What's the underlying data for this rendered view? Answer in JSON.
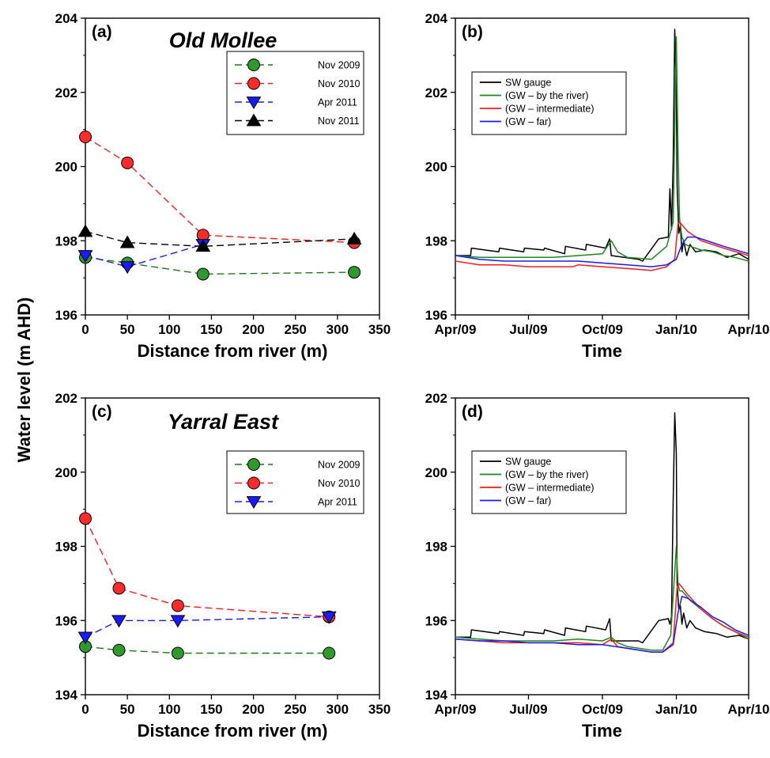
{
  "ylabel": "Water level (m AHD)",
  "chart_data": [
    {
      "panel": "(a)",
      "title": "Old Mollee",
      "type": "line",
      "xlabel": "Distance from river (m)",
      "xlim": [
        0,
        350
      ],
      "ylim": [
        196,
        204
      ],
      "xticks": [
        0,
        50,
        100,
        150,
        200,
        250,
        300,
        350
      ],
      "yticks": [
        196,
        198,
        200,
        202,
        204
      ],
      "legend": "top-right",
      "series": [
        {
          "name": "Nov 2009",
          "color": "#1a7a1a",
          "marker": "circle",
          "marker_color": "#2e9a2e",
          "x": [
            0,
            50,
            140,
            320
          ],
          "y": [
            197.55,
            197.4,
            197.1,
            197.15
          ]
        },
        {
          "name": "Nov 2010",
          "color": "#ff1a1a",
          "marker": "circle",
          "marker_color": "#ff2a2a",
          "x": [
            0,
            50,
            140,
            320
          ],
          "y": [
            200.8,
            200.1,
            198.15,
            197.95
          ]
        },
        {
          "name": "Apr 2011",
          "color": "#1a1aff",
          "marker": "triangle-down",
          "marker_color": "#1a1aff",
          "x": [
            0,
            50,
            140
          ],
          "y": [
            197.6,
            197.3,
            197.9
          ]
        },
        {
          "name": "Nov 2011",
          "color": "#000000",
          "marker": "triangle-up",
          "marker_color": "#000000",
          "x": [
            0,
            50,
            140,
            320
          ],
          "y": [
            198.25,
            197.95,
            197.85,
            198.05
          ]
        }
      ]
    },
    {
      "panel": "(b)",
      "type": "line",
      "xlabel": "Time",
      "x_is_date": true,
      "xlim": [
        "2009-04-01",
        "2010-04-01"
      ],
      "ylim": [
        196,
        204
      ],
      "xticks": [
        "2009-04-01",
        "2009-07-01",
        "2009-10-01",
        "2010-01-01",
        "2010-04-01"
      ],
      "xticklabels": [
        "Apr/09",
        "Jul/09",
        "Oct/09",
        "Jan/10",
        "Apr/10"
      ],
      "yticks": [
        196,
        198,
        200,
        202,
        204
      ],
      "legend": "top-left",
      "series": [
        {
          "name": "SW gauge",
          "color": "#000000",
          "x": [
            "2009-04-01",
            "2009-04-20",
            "2009-04-21",
            "2009-05-25",
            "2009-05-26",
            "2009-06-25",
            "2009-06-26",
            "2009-07-20",
            "2009-07-21",
            "2009-08-15",
            "2009-08-16",
            "2009-09-10",
            "2009-09-11",
            "2009-10-05",
            "2009-10-10",
            "2009-10-12",
            "2009-11-15",
            "2009-11-20",
            "2009-12-10",
            "2009-12-22",
            "2009-12-24",
            "2009-12-26",
            "2009-12-28",
            "2009-12-30",
            "2010-01-01",
            "2010-01-02",
            "2010-01-04",
            "2010-01-06",
            "2010-01-08",
            "2010-01-10",
            "2010-01-14",
            "2010-01-18",
            "2010-01-25",
            "2010-02-05",
            "2010-02-20",
            "2010-03-05",
            "2010-03-20",
            "2010-04-01"
          ],
          "y": [
            197.6,
            197.6,
            197.8,
            197.7,
            197.8,
            197.7,
            197.8,
            197.75,
            197.8,
            197.65,
            197.85,
            197.75,
            197.9,
            197.8,
            198.05,
            197.6,
            197.5,
            197.45,
            198.05,
            198.1,
            199.4,
            198.3,
            200.1,
            203.7,
            202.0,
            199.5,
            198.2,
            198.4,
            197.7,
            198.0,
            197.6,
            197.9,
            197.7,
            197.75,
            197.7,
            197.55,
            197.65,
            197.5
          ]
        },
        {
          "name": "(GW – by the river)",
          "color": "#1a8a1a",
          "x": [
            "2009-04-01",
            "2009-05-01",
            "2009-06-01",
            "2009-07-01",
            "2009-08-01",
            "2009-09-01",
            "2009-10-01",
            "2009-10-12",
            "2009-10-20",
            "2009-11-01",
            "2009-12-01",
            "2009-12-20",
            "2009-12-28",
            "2010-01-01",
            "2010-01-03",
            "2010-01-05",
            "2010-01-08",
            "2010-01-12",
            "2010-01-18",
            "2010-02-01",
            "2010-02-15",
            "2010-03-01",
            "2010-03-15",
            "2010-04-01"
          ],
          "y": [
            197.6,
            197.55,
            197.55,
            197.55,
            197.55,
            197.6,
            197.65,
            198.0,
            197.7,
            197.55,
            197.5,
            197.85,
            198.5,
            203.5,
            200.5,
            198.6,
            198.1,
            197.9,
            197.85,
            197.75,
            197.7,
            197.6,
            197.55,
            197.45
          ]
        },
        {
          "name": "(GW – intermediate)",
          "color": "#ff1a1a",
          "x": [
            "2009-04-01",
            "2009-05-01",
            "2009-06-01",
            "2009-07-01",
            "2009-08-01",
            "2009-08-25",
            "2009-09-01",
            "2009-10-01",
            "2009-11-01",
            "2009-12-01",
            "2009-12-20",
            "2009-12-30",
            "2010-01-03",
            "2010-01-05",
            "2010-01-15",
            "2010-02-01",
            "2010-03-01",
            "2010-04-01"
          ],
          "y": [
            197.45,
            197.35,
            197.35,
            197.3,
            197.3,
            197.3,
            197.35,
            197.3,
            197.25,
            197.2,
            197.3,
            197.5,
            198.45,
            198.5,
            198.25,
            198.0,
            197.8,
            197.6
          ]
        },
        {
          "name": "(GW – far)",
          "color": "#1a1aff",
          "x": [
            "2009-04-01",
            "2009-05-01",
            "2009-06-01",
            "2009-07-01",
            "2009-08-01",
            "2009-09-01",
            "2009-10-01",
            "2009-11-01",
            "2009-12-01",
            "2009-12-20",
            "2010-01-01",
            "2010-01-08",
            "2010-01-15",
            "2010-01-25",
            "2010-02-15",
            "2010-03-01",
            "2010-04-01"
          ],
          "y": [
            197.6,
            197.5,
            197.45,
            197.45,
            197.45,
            197.45,
            197.4,
            197.35,
            197.3,
            197.35,
            197.5,
            197.9,
            198.1,
            198.1,
            197.95,
            197.85,
            197.65
          ]
        }
      ]
    },
    {
      "panel": "(c)",
      "title": "Yarral East",
      "type": "line",
      "xlabel": "Distance from river (m)",
      "xlim": [
        0,
        350
      ],
      "ylim": [
        194,
        202
      ],
      "xticks": [
        0,
        50,
        100,
        150,
        200,
        250,
        300,
        350
      ],
      "yticks": [
        194,
        196,
        198,
        200,
        202
      ],
      "legend": "top-right",
      "series": [
        {
          "name": "Nov 2009",
          "color": "#1a7a1a",
          "marker": "circle",
          "marker_color": "#2e9a2e",
          "x": [
            0,
            40,
            110,
            290
          ],
          "y": [
            195.3,
            195.2,
            195.12,
            195.12
          ]
        },
        {
          "name": "Nov 2010",
          "color": "#ff1a1a",
          "marker": "circle",
          "marker_color": "#ff2a2a",
          "x": [
            0,
            40,
            110,
            290
          ],
          "y": [
            198.75,
            196.87,
            196.4,
            196.1
          ]
        },
        {
          "name": "Apr 2011",
          "color": "#1a1aff",
          "marker": "triangle-down",
          "marker_color": "#1a1aff",
          "x": [
            0,
            40,
            110,
            290
          ],
          "y": [
            195.55,
            196.0,
            196.0,
            196.1
          ]
        }
      ]
    },
    {
      "panel": "(d)",
      "type": "line",
      "xlabel": "Time",
      "x_is_date": true,
      "xlim": [
        "2009-04-01",
        "2010-04-01"
      ],
      "ylim": [
        194,
        202
      ],
      "xticks": [
        "2009-04-01",
        "2009-07-01",
        "2009-10-01",
        "2010-01-01",
        "2010-04-01"
      ],
      "xticklabels": [
        "Apr/09",
        "Jul/09",
        "Oct/09",
        "Jan/10",
        "Apr/10"
      ],
      "yticks": [
        194,
        196,
        198,
        200,
        202
      ],
      "legend": "top-left",
      "series": [
        {
          "name": "SW gauge",
          "color": "#000000",
          "x": [
            "2009-04-01",
            "2009-04-20",
            "2009-04-21",
            "2009-05-25",
            "2009-05-26",
            "2009-06-25",
            "2009-06-26",
            "2009-07-20",
            "2009-07-21",
            "2009-08-15",
            "2009-08-16",
            "2009-09-10",
            "2009-09-11",
            "2009-10-05",
            "2009-10-10",
            "2009-10-12",
            "2009-11-15",
            "2009-11-20",
            "2009-12-10",
            "2009-12-22",
            "2009-12-24",
            "2009-12-26",
            "2009-12-28",
            "2009-12-30",
            "2010-01-01",
            "2010-01-02",
            "2010-01-04",
            "2010-01-06",
            "2010-01-08",
            "2010-01-10",
            "2010-01-14",
            "2010-01-18",
            "2010-01-25",
            "2010-02-05",
            "2010-02-20",
            "2010-03-05",
            "2010-03-20",
            "2010-04-01"
          ],
          "y": [
            195.55,
            195.55,
            195.75,
            195.65,
            195.7,
            195.6,
            195.7,
            195.65,
            195.75,
            195.6,
            195.8,
            195.7,
            195.85,
            195.75,
            196.05,
            195.45,
            195.45,
            195.4,
            196.0,
            196.05,
            195.9,
            196.1,
            199.2,
            201.6,
            200.5,
            197.0,
            196.3,
            196.4,
            195.9,
            196.2,
            195.8,
            196.0,
            195.8,
            195.7,
            195.65,
            195.55,
            195.6,
            195.5
          ]
        },
        {
          "name": "(GW – by the river)",
          "color": "#1a8a1a",
          "x": [
            "2009-04-01",
            "2009-05-01",
            "2009-06-01",
            "2009-07-01",
            "2009-08-01",
            "2009-09-01",
            "2009-10-01",
            "2009-10-12",
            "2009-10-20",
            "2009-11-01",
            "2009-12-01",
            "2009-12-15",
            "2009-12-25",
            "2010-01-01",
            "2010-01-03",
            "2010-01-05",
            "2010-01-08",
            "2010-01-12",
            "2010-01-18",
            "2010-02-01",
            "2010-02-15",
            "2010-03-01",
            "2010-03-15",
            "2010-04-01"
          ],
          "y": [
            195.55,
            195.5,
            195.45,
            195.45,
            195.45,
            195.5,
            195.45,
            195.55,
            195.4,
            195.3,
            195.2,
            195.2,
            195.6,
            198.0,
            197.0,
            196.8,
            196.8,
            196.7,
            196.55,
            196.3,
            196.05,
            195.85,
            195.7,
            195.5
          ]
        },
        {
          "name": "(GW – intermediate)",
          "color": "#ff1a1a",
          "x": [
            "2009-04-01",
            "2009-05-01",
            "2009-06-01",
            "2009-07-01",
            "2009-08-01",
            "2009-09-01",
            "2009-10-01",
            "2009-10-12",
            "2009-10-20",
            "2009-11-01",
            "2009-12-01",
            "2009-12-15",
            "2009-12-28",
            "2010-01-02",
            "2010-01-04",
            "2010-01-08",
            "2010-01-15",
            "2010-02-01",
            "2010-02-15",
            "2010-03-01",
            "2010-03-15",
            "2010-04-01"
          ],
          "y": [
            195.5,
            195.45,
            195.4,
            195.4,
            195.4,
            195.4,
            195.35,
            195.5,
            195.3,
            195.25,
            195.15,
            195.15,
            195.4,
            196.9,
            197.0,
            196.9,
            196.7,
            196.3,
            196.05,
            195.85,
            195.7,
            195.55
          ]
        },
        {
          "name": "(GW – far)",
          "color": "#1a1aff",
          "x": [
            "2009-04-01",
            "2009-05-01",
            "2009-06-01",
            "2009-07-01",
            "2009-08-01",
            "2009-09-01",
            "2009-10-01",
            "2009-11-01",
            "2009-12-01",
            "2009-12-15",
            "2009-12-28",
            "2010-01-03",
            "2010-01-08",
            "2010-01-15",
            "2010-02-01",
            "2010-02-15",
            "2010-03-01",
            "2010-03-15",
            "2010-04-01"
          ],
          "y": [
            195.5,
            195.45,
            195.45,
            195.4,
            195.4,
            195.35,
            195.35,
            195.25,
            195.15,
            195.15,
            195.35,
            196.2,
            196.65,
            196.6,
            196.35,
            196.1,
            195.95,
            195.75,
            195.6
          ]
        }
      ]
    }
  ]
}
